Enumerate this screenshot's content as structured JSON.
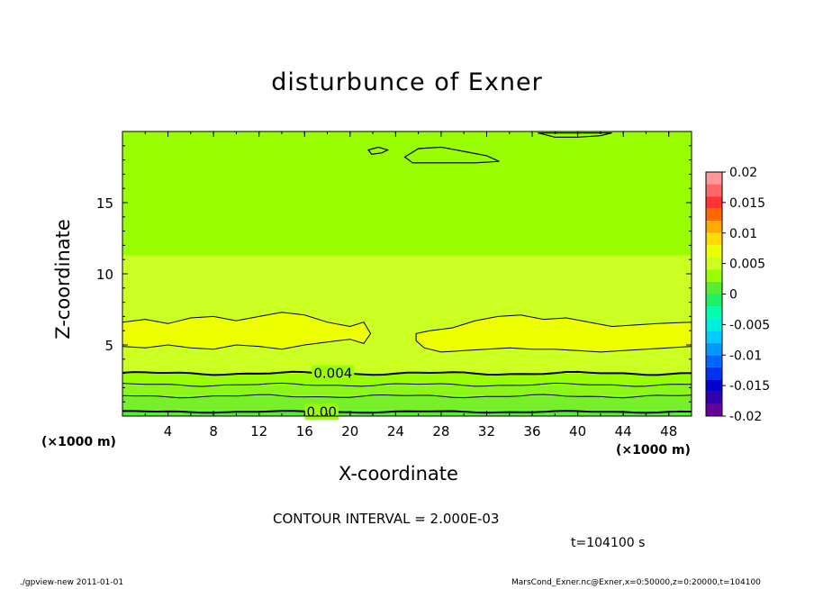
{
  "chart_data": {
    "type": "heatmap",
    "title": "disturbunce of Exner",
    "xlabel": "X-coordinate",
    "ylabel": "Z-coordinate",
    "x_unit_label": "(×1000 m)",
    "xlim": [
      0,
      50
    ],
    "ylim": [
      0,
      20
    ],
    "x_ticks": [
      4,
      8,
      12,
      16,
      20,
      24,
      28,
      32,
      36,
      40,
      44,
      48
    ],
    "y_ticks": [
      5,
      10,
      15
    ],
    "colorbar": {
      "ticks": [
        "0.02",
        "0.015",
        "0.01",
        "0.005",
        "0",
        "-0.005",
        "-0.01",
        "-0.015",
        "-0.02"
      ],
      "levels": [
        {
          "from": 0.018,
          "to": 0.02,
          "color": "#ff9999"
        },
        {
          "from": 0.016,
          "to": 0.018,
          "color": "#ff6666"
        },
        {
          "from": 0.014,
          "to": 0.016,
          "color": "#ff3333"
        },
        {
          "from": 0.012,
          "to": 0.014,
          "color": "#ff6600"
        },
        {
          "from": 0.01,
          "to": 0.012,
          "color": "#ffaa00"
        },
        {
          "from": 0.008,
          "to": 0.01,
          "color": "#ffdd00"
        },
        {
          "from": 0.006,
          "to": 0.008,
          "color": "#eeff00"
        },
        {
          "from": 0.004,
          "to": 0.006,
          "color": "#ccff22"
        },
        {
          "from": 0.002,
          "to": 0.004,
          "color": "#99ff00"
        },
        {
          "from": 0.0,
          "to": 0.002,
          "color": "#55ee33"
        },
        {
          "from": -0.002,
          "to": 0.0,
          "color": "#22ee66"
        },
        {
          "from": -0.004,
          "to": -0.002,
          "color": "#00ffaa"
        },
        {
          "from": -0.006,
          "to": -0.004,
          "color": "#00eedd"
        },
        {
          "from": -0.008,
          "to": -0.006,
          "color": "#00ccff"
        },
        {
          "from": -0.01,
          "to": -0.008,
          "color": "#0099ff"
        },
        {
          "from": -0.012,
          "to": -0.01,
          "color": "#0066ff"
        },
        {
          "from": -0.014,
          "to": -0.012,
          "color": "#0033ee"
        },
        {
          "from": -0.016,
          "to": -0.014,
          "color": "#0000cc"
        },
        {
          "from": -0.018,
          "to": -0.016,
          "color": "#3300aa"
        },
        {
          "from": -0.02,
          "to": -0.018,
          "color": "#660099"
        }
      ]
    },
    "contour_labels": [
      {
        "text": "0.004",
        "x": 18.5,
        "z": 3.0
      },
      {
        "text": "0.00",
        "x": 17.5,
        "z": 0.3
      }
    ],
    "field_bands": [
      {
        "z_from": 0.0,
        "z_to": 0.4,
        "color": "#55ee33"
      },
      {
        "z_from": 0.4,
        "z_to": 1.4,
        "color": "#77f02a"
      },
      {
        "z_from": 1.4,
        "z_to": 2.2,
        "color": "#8cf51a"
      },
      {
        "z_from": 2.2,
        "z_to": 3.0,
        "color": "#99ff00"
      },
      {
        "z_from": 3.0,
        "z_to": 11.3,
        "color": "#ccff22"
      },
      {
        "z_from": 11.3,
        "z_to": 20.0,
        "color": "#99ff00"
      }
    ],
    "contour_interval": "CONTOUR INTERVAL = 2.000E-03",
    "time": "t=104100 s"
  },
  "footer": {
    "left": "./gpview-new  2011-01-01",
    "right": "MarsCond_Exner.nc@Exner,x=0:50000,z=0:20000,t=104100"
  }
}
